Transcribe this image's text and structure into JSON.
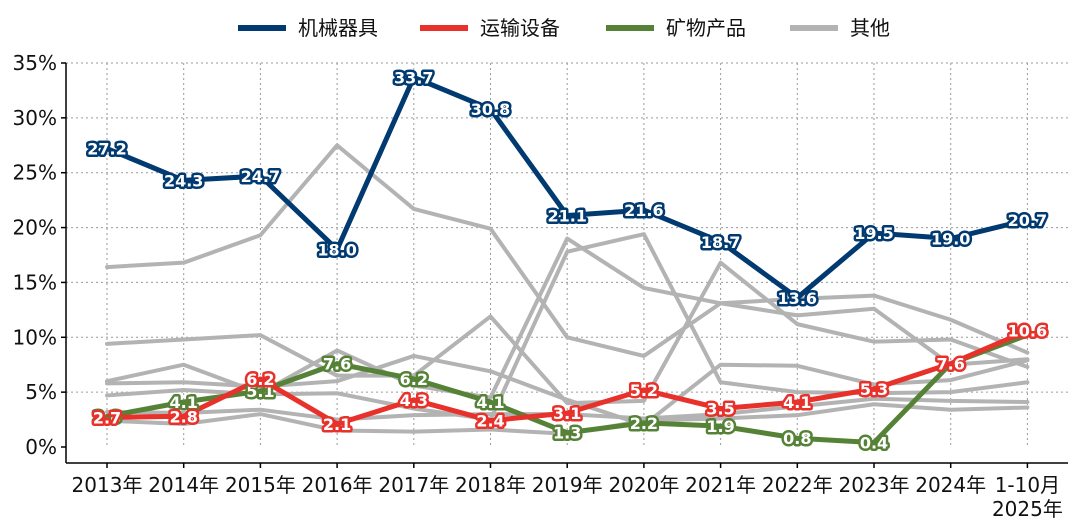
{
  "chart_data": {
    "type": "line",
    "title": "",
    "xlabel": "",
    "ylabel": "",
    "categories": [
      "2013年",
      "2014年",
      "2015年",
      "2016年",
      "2017年",
      "2018年",
      "2019年",
      "2020年",
      "2021年",
      "2022年",
      "2023年",
      "2024年",
      "1-10月\n2025年"
    ],
    "ylim": [
      0,
      35
    ],
    "yticks": [
      0,
      5,
      10,
      15,
      20,
      25,
      30,
      35
    ],
    "ytick_labels": [
      "0%",
      "5%",
      "10%",
      "15%",
      "20%",
      "25%",
      "30%",
      "35%"
    ],
    "grid": true,
    "legend_position": "top-center",
    "series": [
      {
        "name": "机械器具",
        "color": "#003a70",
        "highlight": true,
        "labeled": true,
        "values": [
          27.2,
          24.3,
          24.7,
          18.0,
          33.7,
          30.8,
          21.1,
          21.6,
          18.7,
          13.6,
          19.5,
          19.0,
          20.7
        ],
        "labels": [
          "27.2",
          "24.3",
          "24.7",
          "18.0",
          "33.7",
          "30.8",
          "21.1",
          "21.6",
          "18.7",
          "13.6",
          "19.5",
          "19.0",
          "20.7"
        ]
      },
      {
        "name": "运输设备",
        "color": "#e8312a",
        "highlight": true,
        "labeled": true,
        "values": [
          2.7,
          2.8,
          6.2,
          2.1,
          4.3,
          2.4,
          3.1,
          5.2,
          3.5,
          4.1,
          5.3,
          7.6,
          10.6
        ],
        "labels": [
          "2.7",
          "2.8",
          "6.2",
          "2.1",
          "4.3",
          "2.4",
          "3.1",
          "5.2",
          "3.5",
          "4.1",
          "5.3",
          "7.6",
          "10.6"
        ]
      },
      {
        "name": "矿物产品",
        "color": "#568237",
        "highlight": true,
        "labeled": true,
        "values": [
          2.8,
          4.1,
          5.1,
          7.6,
          6.2,
          4.1,
          1.3,
          2.2,
          1.9,
          0.8,
          0.4,
          7.6,
          10.2
        ],
        "labels": [
          "2.8",
          "4.1",
          "5.1",
          "7.6",
          "6.2",
          "4.1",
          "1.3",
          "2.2",
          "1.9",
          "0.8",
          "0.4",
          "",
          ""
        ]
      },
      {
        "name": "其他",
        "color": "#b3b3b3",
        "highlight": false,
        "labeled": false,
        "in_legend": true,
        "values": [
          16.4,
          16.8,
          19.3,
          27.5,
          21.7,
          19.9,
          10.0,
          8.3,
          13.1,
          13.5,
          13.8,
          11.6,
          8.6
        ]
      },
      {
        "name": "其他",
        "color": "#b3b3b3",
        "highlight": false,
        "labeled": false,
        "in_legend": false,
        "values": [
          9.4,
          9.8,
          10.2,
          6.5,
          6.5,
          11.9,
          4.0,
          4.2,
          16.8,
          11.2,
          9.6,
          9.8,
          7.3
        ]
      },
      {
        "name": "其他",
        "color": "#b3b3b3",
        "highlight": false,
        "labeled": false,
        "in_legend": false,
        "values": [
          6.0,
          7.5,
          4.9,
          8.8,
          5.6,
          4.5,
          19.0,
          14.5,
          13.1,
          12.0,
          12.6,
          7.5,
          8.0
        ]
      },
      {
        "name": "其他",
        "color": "#b3b3b3",
        "highlight": false,
        "labeled": false,
        "in_legend": false,
        "values": [
          5.8,
          5.9,
          5.5,
          6.0,
          8.3,
          6.9,
          4.3,
          2.0,
          7.5,
          7.4,
          5.7,
          6.1,
          7.9
        ]
      },
      {
        "name": "其他",
        "color": "#b3b3b3",
        "highlight": false,
        "labeled": false,
        "in_legend": false,
        "values": [
          4.7,
          5.2,
          4.8,
          4.9,
          3.5,
          2.5,
          17.8,
          19.4,
          5.9,
          5.0,
          4.9,
          5.0,
          5.9
        ]
      },
      {
        "name": "其他",
        "color": "#b3b3b3",
        "highlight": false,
        "labeled": false,
        "in_legend": false,
        "values": [
          3.2,
          3.1,
          3.4,
          2.5,
          2.9,
          3.0,
          3.0,
          2.6,
          3.0,
          3.7,
          4.4,
          4.2,
          4.1
        ]
      },
      {
        "name": "其他",
        "color": "#b3b3b3",
        "highlight": false,
        "labeled": false,
        "in_legend": false,
        "values": [
          2.4,
          2.1,
          3.0,
          1.5,
          1.4,
          1.6,
          1.2,
          2.4,
          2.6,
          2.9,
          3.9,
          3.4,
          3.6
        ]
      }
    ]
  }
}
